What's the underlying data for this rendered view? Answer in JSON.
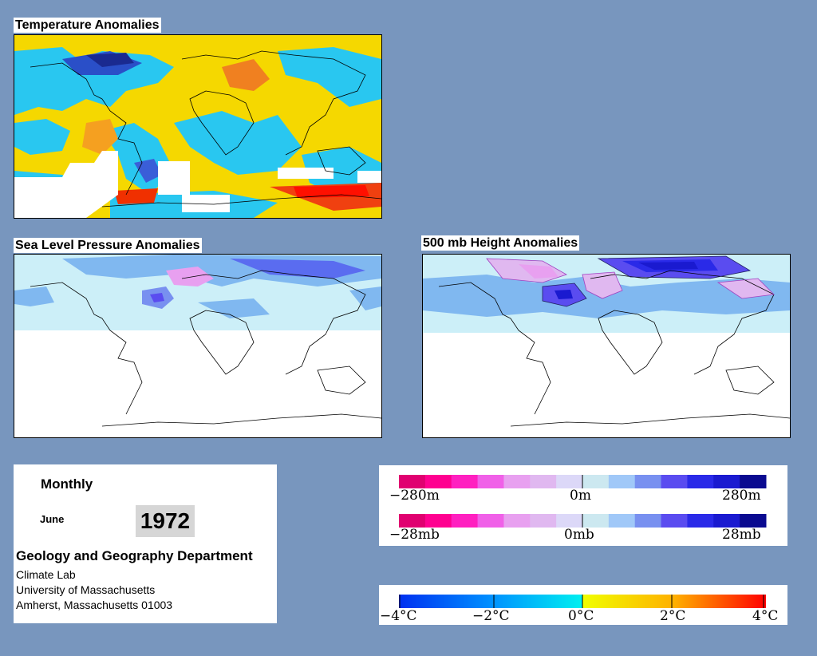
{
  "panels": {
    "temperature": {
      "title": "Temperature Anomalies"
    },
    "slp": {
      "title": "Sea Level Pressure Anomalies"
    },
    "height": {
      "title": "500 mb Height Anomalies"
    }
  },
  "info": {
    "period_type": "Monthly",
    "month": "June",
    "year": "1972",
    "department": "Geology and Geography Department",
    "lab": "Climate Lab",
    "university": "University of Massachusetts",
    "address": "Amherst, Massachusetts 01003"
  },
  "legends": {
    "height": {
      "left": "−280m",
      "center": "0m",
      "right": "280m"
    },
    "pressure": {
      "left": "−28mb",
      "center": "0mb",
      "right": "28mb"
    },
    "temperature": {
      "t1": "−4°C",
      "t2": "−2°C",
      "t3": "0°C",
      "t4": "2°C",
      "t5": "4°C"
    }
  },
  "colors": {
    "background": "#7896be",
    "anomaly_pos_height": [
      "#cce8f0",
      "#a0c8f8",
      "#7890f0",
      "#5a4cf0",
      "#2a2ae8",
      "#1a1ad0",
      "#0a0a90"
    ],
    "anomaly_neg_height": [
      "#dcd8f8",
      "#e0b8f0",
      "#e8a0f0",
      "#f060e8",
      "#ff20c0",
      "#ff0090",
      "#e00070"
    ],
    "temp_scale": [
      "#0040ff",
      "#0080ff",
      "#00b8ff",
      "#00e8f0",
      "#ffff00",
      "#ffc000",
      "#ff8000",
      "#ff4000",
      "#ff0000"
    ]
  }
}
